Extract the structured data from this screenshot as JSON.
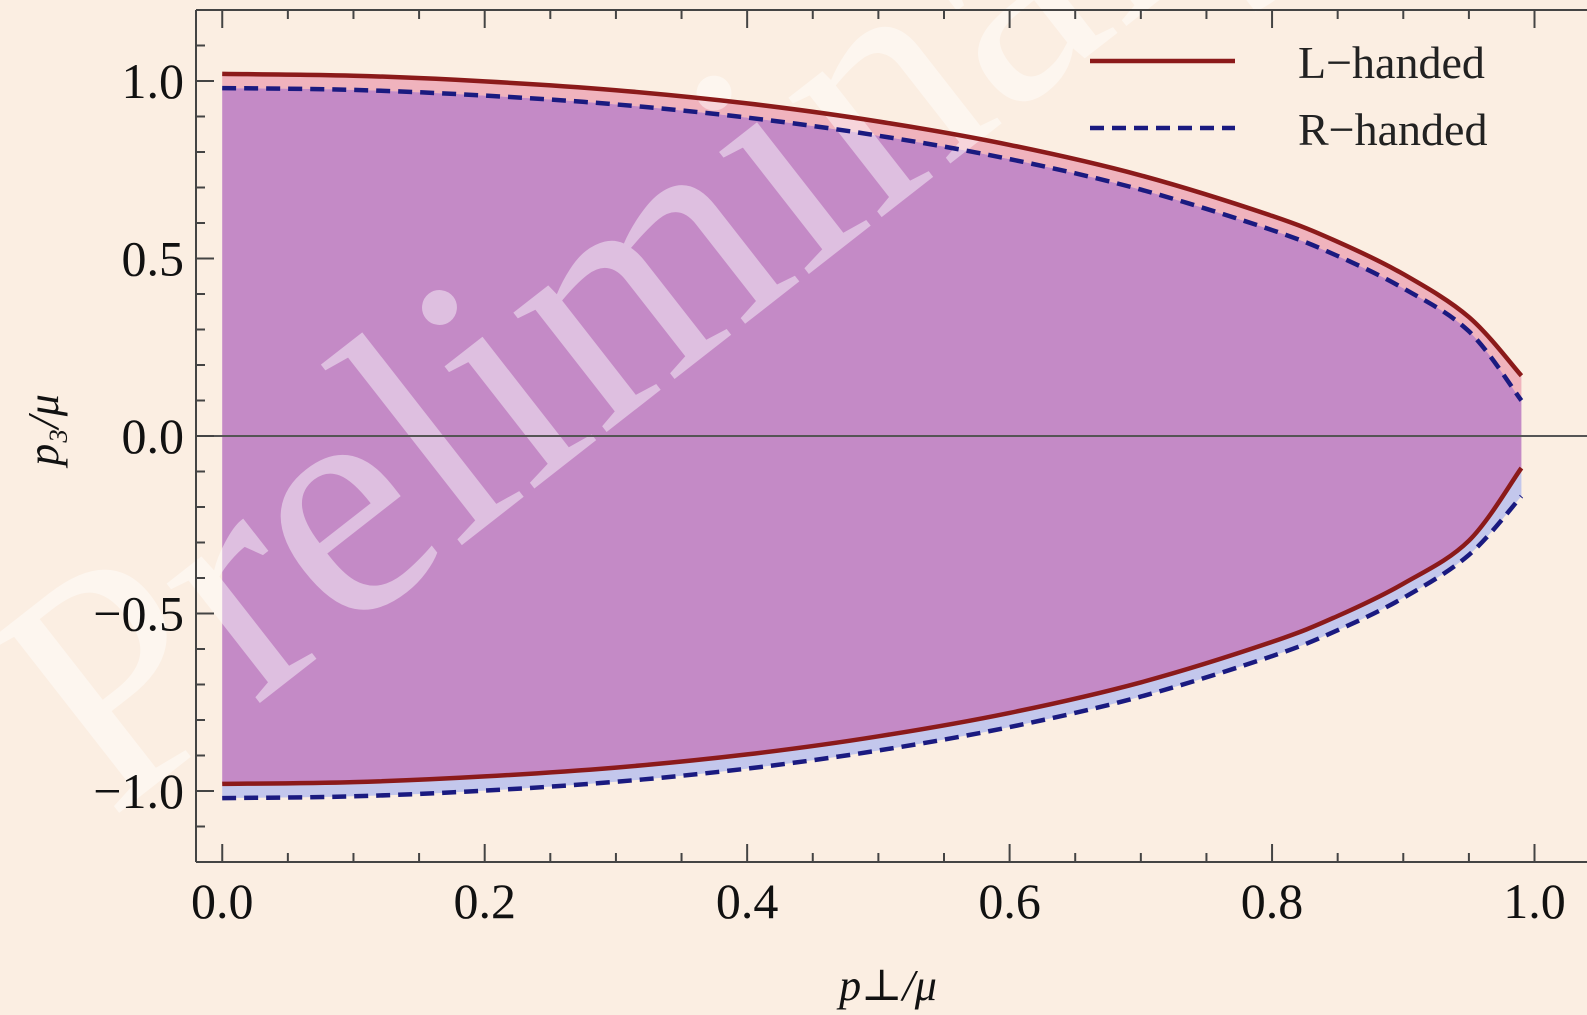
{
  "watermark": "Preliminary",
  "colors": {
    "background": "#fbeee2",
    "l_handed": "#8b1a1a",
    "r_handed": "#1a1a80",
    "fill_overlap": "#c48ac6",
    "fill_l_only": "#f0b3bd",
    "fill_r_only": "#c3c7ec",
    "axis": "#444444"
  },
  "chart_data": {
    "type": "area",
    "xlabel": "p⊥/μ",
    "ylabel": "p₃/μ",
    "xlim": [
      -0.02,
      1.04
    ],
    "ylim": [
      -1.2,
      1.2
    ],
    "xticks": [
      0.0,
      0.2,
      0.4,
      0.6,
      0.8,
      1.0
    ],
    "xtick_labels": [
      "0.0",
      "0.2",
      "0.4",
      "0.6",
      "0.8",
      "1.0"
    ],
    "yticks": [
      1.0,
      0.5,
      0.0,
      -0.5,
      -1.0
    ],
    "ytick_labels": [
      "1.0",
      "0.5",
      "0.0",
      "−0.5",
      "−1.0"
    ],
    "grid": false,
    "legend_position": "top-right",
    "horizontal_reference_line": 0.0,
    "x": [
      0.0,
      0.1,
      0.2,
      0.3,
      0.4,
      0.5,
      0.6,
      0.7,
      0.8,
      0.85,
      0.9,
      0.95,
      0.99
    ],
    "series": [
      {
        "name": "L−handed",
        "style": "solid",
        "upper": [
          1.02,
          1.015,
          0.999,
          0.974,
          0.937,
          0.886,
          0.82,
          0.734,
          0.62,
          0.547,
          0.456,
          0.335,
          0.17
        ],
        "lower": [
          -0.98,
          -0.975,
          -0.959,
          -0.934,
          -0.897,
          -0.846,
          -0.78,
          -0.694,
          -0.58,
          -0.507,
          -0.416,
          -0.295,
          -0.09
        ]
      },
      {
        "name": "R−handed",
        "style": "dashed",
        "upper": [
          0.98,
          0.975,
          0.959,
          0.934,
          0.897,
          0.846,
          0.78,
          0.694,
          0.58,
          0.507,
          0.416,
          0.295,
          0.1
        ],
        "lower": [
          -1.02,
          -1.015,
          -0.999,
          -0.974,
          -0.937,
          -0.886,
          -0.82,
          -0.734,
          -0.62,
          -0.547,
          -0.456,
          -0.335,
          -0.17
        ]
      }
    ]
  }
}
